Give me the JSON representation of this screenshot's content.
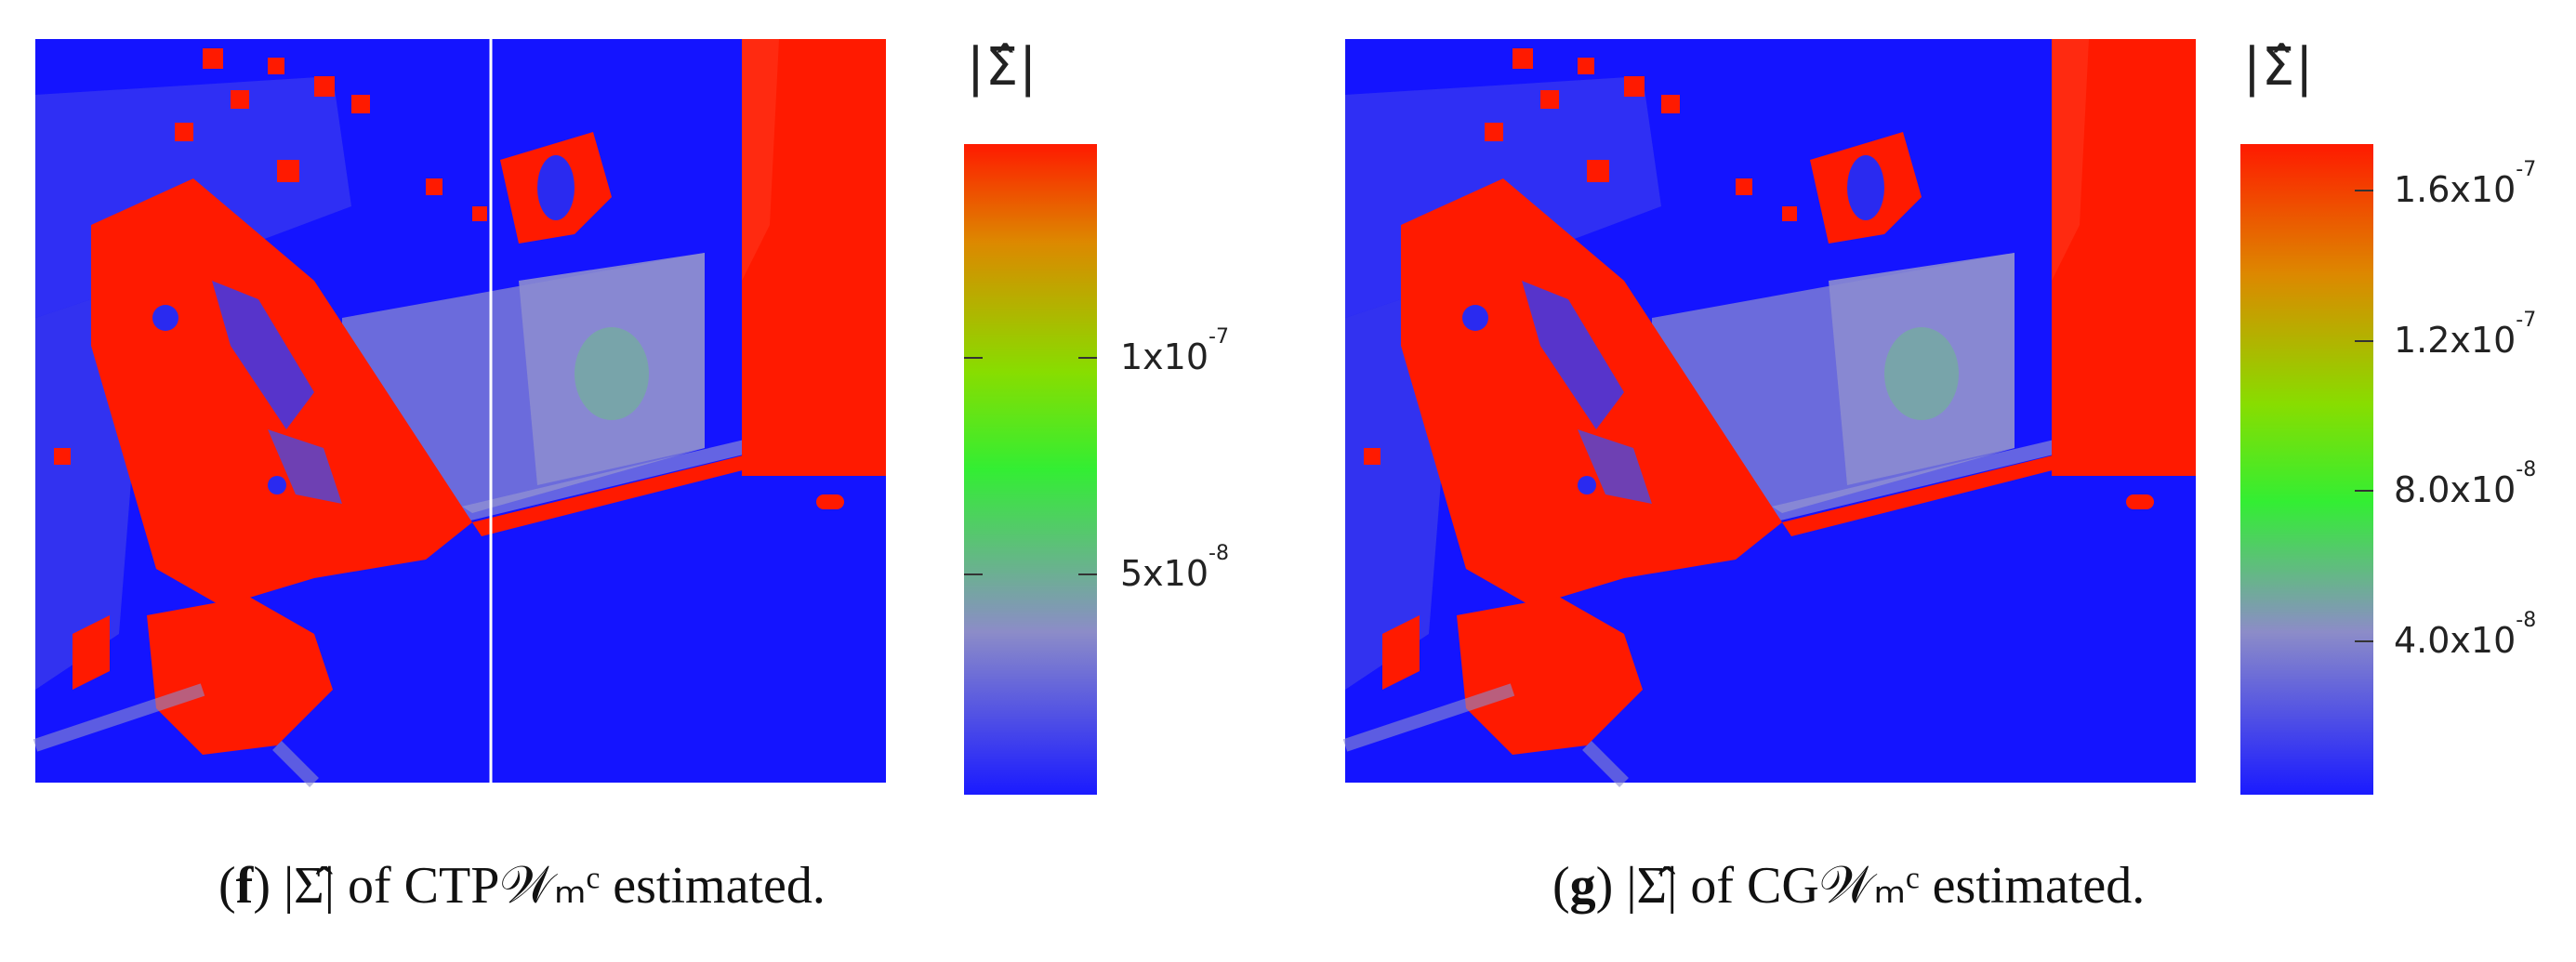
{
  "figures": [
    {
      "id": "f",
      "colorbar_title": "|Σ̂|",
      "tick_labels": [
        {
          "text": "5x10",
          "exp": "-8"
        },
        {
          "text": "1x10",
          "exp": "-7"
        }
      ],
      "caption": {
        "label": "f",
        "text": "|Σ̂| of CTP𝒲ₘᶜ estimated."
      },
      "has_split_line": true
    },
    {
      "id": "g",
      "colorbar_title": "|Σ̂|",
      "tick_labels": [
        {
          "text": "4.0x10",
          "exp": "-8"
        },
        {
          "text": "8.0x10",
          "exp": "-8"
        },
        {
          "text": "1.2x10",
          "exp": "-7"
        },
        {
          "text": "1.6x10",
          "exp": "-7"
        }
      ],
      "caption": {
        "label": "g",
        "text": "|Σ̂| of CG𝒲ₘᶜ estimated."
      },
      "has_split_line": false
    }
  ],
  "colors": {
    "low": "#1414ff",
    "mid_low": "#9a9ac6",
    "mid": "#33e633",
    "mid_high": "#cccc00",
    "high": "#ff1a00"
  }
}
